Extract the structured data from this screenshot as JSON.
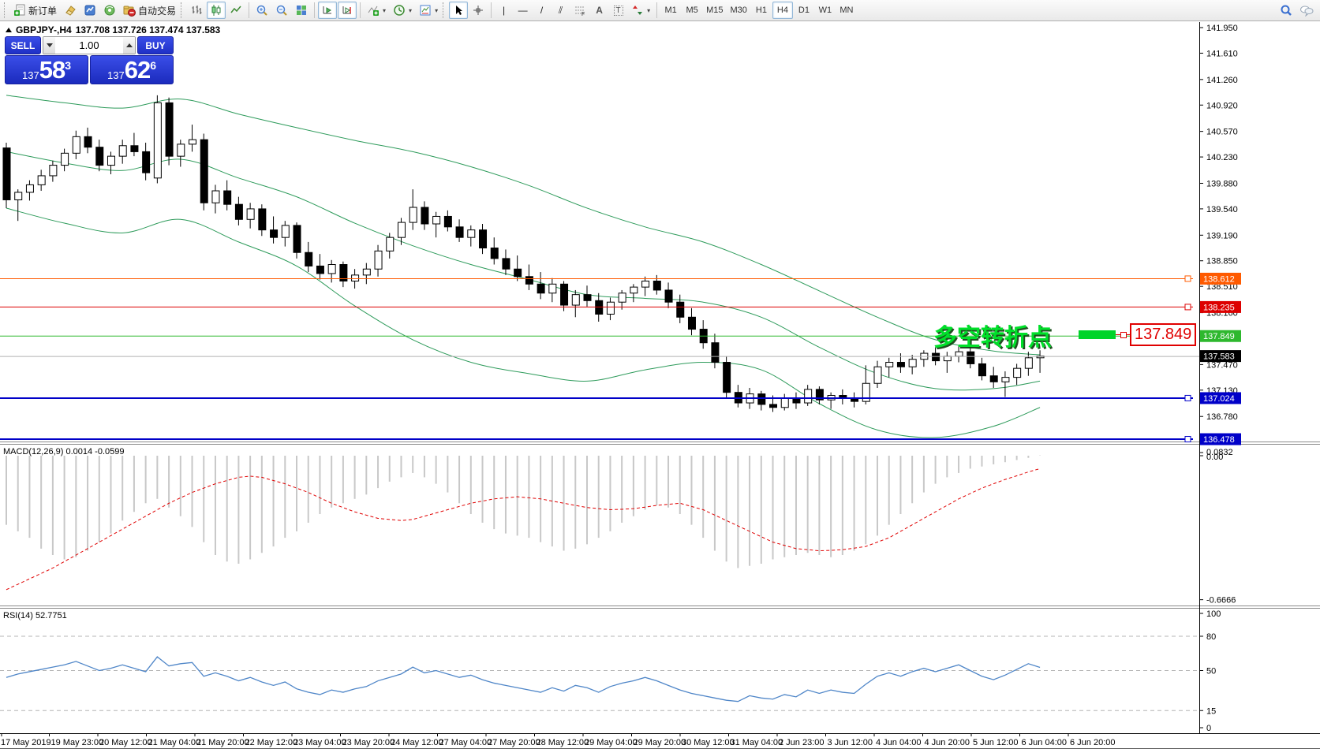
{
  "toolbar": {
    "new_order_label": "新订单",
    "autotrading_label": "自动交易",
    "timeframes": [
      "M1",
      "M5",
      "M15",
      "M30",
      "H1",
      "H4",
      "D1",
      "W1",
      "MN"
    ],
    "active_timeframe": "H4",
    "glyphs": {
      "crosshair": "+",
      "vertical_line": "|",
      "horizontal_line": "—",
      "trendline": "/",
      "channel": "⫽",
      "fibo": "F",
      "text": "A",
      "label": "T"
    }
  },
  "chart_header": {
    "symbol": "GBPJPY-,H4",
    "ohlc": "137.708 137.726 137.474 137.583"
  },
  "trade_panel": {
    "sell_label": "SELL",
    "buy_label": "BUY",
    "volume": "1.00",
    "sell_price": {
      "prefix": "137",
      "big": "58",
      "sup": "3"
    },
    "buy_price": {
      "prefix": "137",
      "big": "62",
      "sup": "6"
    }
  },
  "annotation": {
    "text": "多空转折点",
    "price_label": "137.849"
  },
  "chart_data": {
    "type": "candlestick",
    "symbol": "GBPJPY",
    "timeframe": "H4",
    "y_axis_ticks": [
      141.95,
      141.61,
      141.26,
      140.92,
      140.57,
      140.23,
      139.88,
      139.54,
      139.19,
      138.85,
      138.51,
      138.16,
      137.82,
      137.47,
      137.13,
      136.78,
      136.43
    ],
    "current_price": {
      "value": "137.583",
      "line_color": "#b0b0b0",
      "badge_color": "#000000"
    },
    "price_lines": [
      {
        "price": 138.612,
        "label": "138.612",
        "color": "#ff5a00",
        "width": 1
      },
      {
        "price": 138.235,
        "label": "138.235",
        "color": "#dd0000",
        "width": 1
      },
      {
        "price": 137.849,
        "label": "137.849",
        "color": "#2eb82e",
        "width": 1
      },
      {
        "price": 137.024,
        "label": "137.024",
        "color": "#0000c8",
        "width": 2
      },
      {
        "price": 136.478,
        "label": "136.478",
        "color": "#0000c8",
        "width": 2
      }
    ],
    "candles": [
      [
        140.35,
        140.42,
        139.55,
        139.66
      ],
      [
        139.66,
        139.8,
        139.38,
        139.76
      ],
      [
        139.76,
        139.92,
        139.65,
        139.86
      ],
      [
        139.86,
        140.06,
        139.78,
        139.98
      ],
      [
        139.98,
        140.18,
        139.9,
        140.12
      ],
      [
        140.12,
        140.34,
        140.04,
        140.28
      ],
      [
        140.28,
        140.58,
        140.2,
        140.5
      ],
      [
        140.5,
        140.62,
        140.28,
        140.36
      ],
      [
        140.36,
        140.46,
        140.04,
        140.12
      ],
      [
        140.12,
        140.3,
        140.0,
        140.24
      ],
      [
        140.24,
        140.46,
        140.14,
        140.38
      ],
      [
        140.38,
        140.55,
        140.24,
        140.3
      ],
      [
        140.3,
        140.42,
        139.92,
        140.02
      ],
      [
        139.95,
        141.05,
        139.88,
        140.95
      ],
      [
        140.95,
        141.02,
        140.12,
        140.24
      ],
      [
        140.24,
        140.46,
        140.1,
        140.4
      ],
      [
        140.4,
        140.66,
        140.3,
        140.46
      ],
      [
        140.46,
        140.54,
        139.52,
        139.62
      ],
      [
        139.62,
        139.86,
        139.48,
        139.78
      ],
      [
        139.78,
        139.92,
        139.52,
        139.6
      ],
      [
        139.6,
        139.7,
        139.32,
        139.4
      ],
      [
        139.4,
        139.62,
        139.28,
        139.54
      ],
      [
        139.54,
        139.6,
        139.18,
        139.26
      ],
      [
        139.26,
        139.44,
        139.08,
        139.16
      ],
      [
        139.16,
        139.38,
        139.04,
        139.32
      ],
      [
        139.32,
        139.36,
        138.88,
        138.96
      ],
      [
        138.96,
        139.1,
        138.7,
        138.78
      ],
      [
        138.78,
        138.94,
        138.6,
        138.68
      ],
      [
        138.68,
        138.86,
        138.56,
        138.8
      ],
      [
        138.8,
        138.84,
        138.5,
        138.58
      ],
      [
        138.58,
        138.74,
        138.48,
        138.66
      ],
      [
        138.66,
        138.82,
        138.54,
        138.74
      ],
      [
        138.74,
        139.06,
        138.64,
        138.98
      ],
      [
        138.98,
        139.22,
        138.88,
        139.16
      ],
      [
        139.16,
        139.42,
        139.06,
        139.36
      ],
      [
        139.36,
        139.8,
        139.26,
        139.56
      ],
      [
        139.56,
        139.64,
        139.26,
        139.34
      ],
      [
        139.34,
        139.5,
        139.16,
        139.44
      ],
      [
        139.44,
        139.52,
        139.24,
        139.3
      ],
      [
        139.3,
        139.4,
        139.1,
        139.16
      ],
      [
        139.16,
        139.32,
        139.04,
        139.26
      ],
      [
        139.26,
        139.34,
        138.94,
        139.02
      ],
      [
        139.02,
        139.16,
        138.8,
        138.88
      ],
      [
        138.88,
        139.0,
        138.66,
        138.74
      ],
      [
        138.74,
        138.92,
        138.58,
        138.64
      ],
      [
        138.64,
        138.8,
        138.46,
        138.54
      ],
      [
        138.54,
        138.7,
        138.34,
        138.42
      ],
      [
        138.42,
        138.62,
        138.3,
        138.54
      ],
      [
        138.54,
        138.58,
        138.18,
        138.26
      ],
      [
        138.26,
        138.46,
        138.1,
        138.4
      ],
      [
        138.4,
        138.52,
        138.24,
        138.32
      ],
      [
        138.32,
        138.42,
        138.04,
        138.14
      ],
      [
        138.14,
        138.36,
        138.06,
        138.3
      ],
      [
        138.3,
        138.46,
        138.2,
        138.42
      ],
      [
        138.42,
        138.54,
        138.3,
        138.5
      ],
      [
        138.5,
        138.64,
        138.38,
        138.58
      ],
      [
        138.58,
        138.66,
        138.4,
        138.46
      ],
      [
        138.46,
        138.56,
        138.22,
        138.3
      ],
      [
        138.3,
        138.4,
        138.02,
        138.1
      ],
      [
        138.1,
        138.22,
        137.86,
        137.94
      ],
      [
        137.94,
        138.06,
        137.68,
        137.76
      ],
      [
        137.76,
        137.88,
        137.42,
        137.5
      ],
      [
        137.5,
        137.58,
        137.02,
        137.1
      ],
      [
        137.1,
        137.2,
        136.9,
        136.96
      ],
      [
        136.96,
        137.16,
        136.88,
        137.08
      ],
      [
        137.08,
        137.12,
        136.86,
        136.94
      ],
      [
        136.94,
        137.06,
        136.84,
        136.9
      ],
      [
        136.9,
        137.08,
        136.86,
        137.02
      ],
      [
        137.02,
        137.1,
        136.88,
        136.96
      ],
      [
        136.96,
        137.2,
        136.92,
        137.14
      ],
      [
        137.14,
        137.18,
        136.94,
        137.0
      ],
      [
        137.0,
        137.1,
        136.88,
        137.06
      ],
      [
        137.06,
        137.14,
        136.94,
        137.02
      ],
      [
        137.02,
        137.1,
        136.9,
        136.98
      ],
      [
        136.98,
        137.46,
        136.94,
        137.22
      ],
      [
        137.22,
        137.52,
        137.16,
        137.44
      ],
      [
        137.44,
        137.56,
        137.3,
        137.5
      ],
      [
        137.5,
        137.62,
        137.36,
        137.44
      ],
      [
        137.44,
        137.6,
        137.34,
        137.54
      ],
      [
        137.54,
        137.66,
        137.44,
        137.62
      ],
      [
        137.62,
        137.7,
        137.46,
        137.52
      ],
      [
        137.52,
        137.64,
        137.36,
        137.58
      ],
      [
        137.58,
        137.72,
        137.5,
        137.64
      ],
      [
        137.64,
        137.7,
        137.42,
        137.48
      ],
      [
        137.48,
        137.56,
        137.26,
        137.32
      ],
      [
        137.32,
        137.44,
        137.16,
        137.24
      ],
      [
        137.24,
        137.38,
        137.04,
        137.3
      ],
      [
        137.3,
        137.48,
        137.2,
        137.42
      ],
      [
        137.42,
        137.64,
        137.32,
        137.56
      ],
      [
        137.56,
        137.66,
        137.36,
        137.583
      ]
    ],
    "bollinger": {
      "color": "#2e9b5b",
      "indices": [
        0,
        5,
        10,
        15,
        20,
        25,
        30,
        35,
        40,
        45,
        50,
        55,
        60,
        65,
        70,
        75,
        80,
        85,
        89
      ],
      "upper": [
        141.05,
        140.95,
        140.88,
        141.0,
        140.8,
        140.62,
        140.45,
        140.3,
        140.1,
        139.85,
        139.55,
        139.3,
        139.1,
        138.8,
        138.45,
        138.1,
        137.8,
        137.65,
        137.6
      ],
      "middle": [
        140.3,
        140.15,
        140.05,
        140.2,
        139.95,
        139.7,
        139.35,
        139.05,
        138.8,
        138.6,
        138.4,
        138.35,
        138.3,
        138.1,
        137.7,
        137.35,
        137.15,
        137.15,
        137.25
      ],
      "lower": [
        139.55,
        139.35,
        139.22,
        139.4,
        139.1,
        138.78,
        138.25,
        137.8,
        137.5,
        137.35,
        137.25,
        137.4,
        137.5,
        137.4,
        136.95,
        136.6,
        136.5,
        136.65,
        136.9
      ]
    },
    "macd": {
      "label": "MACD(12,26,9) 0.0014 -0.0599",
      "axis_labels": [
        "0.0832",
        "0.00",
        "-0.6666"
      ],
      "histogram_color": "#c8c8c8",
      "signal_color": "#e00000",
      "histogram": [
        -0.32,
        -0.35,
        -0.38,
        -0.43,
        -0.46,
        -0.48,
        -0.47,
        -0.44,
        -0.4,
        -0.36,
        -0.3,
        -0.26,
        -0.22,
        -0.2,
        -0.24,
        -0.28,
        -0.33,
        -0.4,
        -0.46,
        -0.49,
        -0.5,
        -0.48,
        -0.45,
        -0.42,
        -0.38,
        -0.35,
        -0.31,
        -0.27,
        -0.24,
        -0.22,
        -0.2,
        -0.18,
        -0.15,
        -0.12,
        -0.1,
        -0.08,
        -0.1,
        -0.13,
        -0.17,
        -0.22,
        -0.27,
        -0.31,
        -0.34,
        -0.36,
        -0.37,
        -0.38,
        -0.4,
        -0.42,
        -0.44,
        -0.43,
        -0.41,
        -0.38,
        -0.35,
        -0.31,
        -0.28,
        -0.25,
        -0.23,
        -0.24,
        -0.27,
        -0.32,
        -0.38,
        -0.44,
        -0.49,
        -0.52,
        -0.51,
        -0.5,
        -0.48,
        -0.47,
        -0.46,
        -0.45,
        -0.46,
        -0.47,
        -0.46,
        -0.44,
        -0.41,
        -0.37,
        -0.32,
        -0.27,
        -0.22,
        -0.17,
        -0.13,
        -0.1,
        -0.08,
        -0.06,
        -0.05,
        -0.04,
        -0.03,
        -0.02,
        -0.01,
        0.0014
      ],
      "signal": [
        -0.62,
        -0.595,
        -0.57,
        -0.545,
        -0.52,
        -0.49,
        -0.46,
        -0.43,
        -0.4,
        -0.37,
        -0.34,
        -0.31,
        -0.28,
        -0.25,
        -0.22,
        -0.195,
        -0.17,
        -0.15,
        -0.13,
        -0.115,
        -0.1,
        -0.095,
        -0.1,
        -0.115,
        -0.13,
        -0.15,
        -0.17,
        -0.195,
        -0.22,
        -0.24,
        -0.26,
        -0.275,
        -0.29,
        -0.295,
        -0.3,
        -0.295,
        -0.28,
        -0.265,
        -0.25,
        -0.235,
        -0.22,
        -0.21,
        -0.2,
        -0.195,
        -0.19,
        -0.195,
        -0.2,
        -0.21,
        -0.22,
        -0.23,
        -0.24,
        -0.245,
        -0.25,
        -0.248,
        -0.245,
        -0.238,
        -0.23,
        -0.225,
        -0.22,
        -0.235,
        -0.25,
        -0.275,
        -0.3,
        -0.325,
        -0.35,
        -0.375,
        -0.4,
        -0.415,
        -0.43,
        -0.435,
        -0.44,
        -0.438,
        -0.435,
        -0.428,
        -0.42,
        -0.4,
        -0.38,
        -0.35,
        -0.32,
        -0.29,
        -0.26,
        -0.23,
        -0.2,
        -0.175,
        -0.15,
        -0.13,
        -0.11,
        -0.093,
        -0.075,
        -0.0599
      ]
    },
    "rsi": {
      "label": "RSI(14) 52.7751",
      "line_color": "#4f86c8",
      "levels": [
        80,
        50,
        15
      ],
      "axis_labels": [
        "100",
        "80",
        "50",
        "15",
        "0"
      ],
      "series": [
        44,
        47,
        49,
        51,
        53,
        55,
        58,
        54,
        50,
        52,
        55,
        52,
        49,
        62,
        54,
        56,
        57,
        45,
        48,
        45,
        41,
        44,
        40,
        37,
        40,
        34,
        31,
        29,
        33,
        31,
        34,
        36,
        41,
        44,
        47,
        53,
        48,
        50,
        47,
        44,
        46,
        42,
        39,
        37,
        35,
        33,
        31,
        35,
        32,
        37,
        35,
        31,
        36,
        39,
        41,
        44,
        41,
        37,
        33,
        30,
        28,
        26,
        24,
        23,
        28,
        26,
        25,
        29,
        27,
        33,
        30,
        33,
        31,
        30,
        38,
        45,
        48,
        45,
        49,
        52,
        49,
        52,
        55,
        50,
        45,
        42,
        46,
        51,
        56,
        52.7751
      ]
    },
    "x_labels": [
      "17 May 2019",
      "19 May 23:00",
      "20 May 12:00",
      "21 May 04:00",
      "21 May 20:00",
      "22 May 12:00",
      "23 May 04:00",
      "23 May 20:00",
      "24 May 12:00",
      "27 May 04:00",
      "27 May 20:00",
      "28 May 12:00",
      "29 May 04:00",
      "29 May 20:00",
      "30 May 12:00",
      "31 May 04:00",
      "2 Jun 23:00",
      "3 Jun 12:00",
      "4 Jun 04:00",
      "4 Jun 20:00",
      "5 Jun 12:00",
      "6 Jun 04:00",
      "6 Jun 20:00"
    ]
  }
}
